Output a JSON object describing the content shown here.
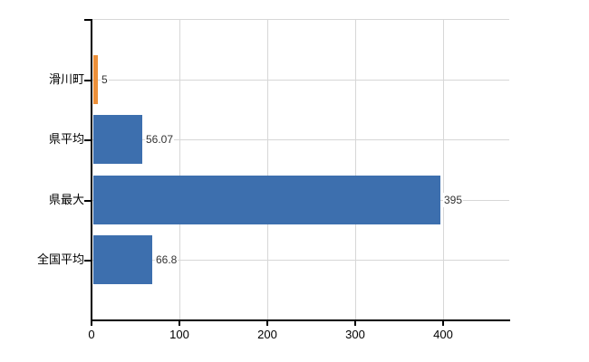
{
  "chart_data": {
    "type": "bar",
    "orientation": "horizontal",
    "categories": [
      "滑川町",
      "県平均",
      "県最大",
      "全国平均"
    ],
    "values": [
      5,
      56.07,
      395,
      66.8
    ],
    "value_labels": [
      "5",
      "56.07",
      "395",
      "66.8"
    ],
    "bar_colors": [
      "#ec8f38",
      "#3d6fae",
      "#3d6fae",
      "#3d6fae"
    ],
    "xticks": [
      0,
      100,
      200,
      300,
      400
    ],
    "xtick_labels": [
      "0",
      "100",
      "200",
      "300",
      "400"
    ],
    "xlim": [
      0,
      475
    ],
    "grid": true,
    "gridlines": "vertical-at-xticks-and-horizontal-at-category-centers"
  },
  "colors": {
    "default_bar": "#3d6fae",
    "highlight_bar": "#ec8f38",
    "gridline": "#d7d7d7",
    "axis": "#000000",
    "category_label_text": "#000000",
    "value_label_text": "#333333",
    "xtick_label_text": "#000000",
    "background": "#ffffff"
  }
}
